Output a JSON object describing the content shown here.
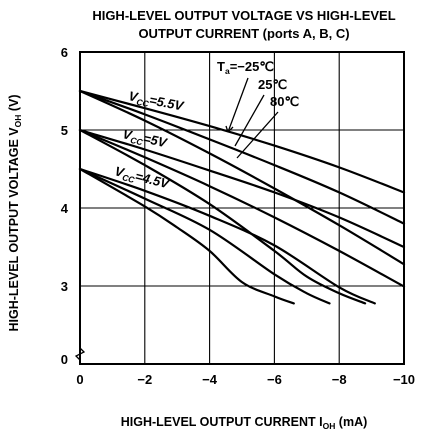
{
  "chart_data": {
    "type": "line",
    "title_line1": "HIGH-LEVEL OUTPUT VOLTAGE VS HIGH-LEVEL",
    "title_line2": "OUTPUT CURRENT (ports A, B, C)",
    "xlabel_main": "HIGH-LEVEL OUTPUT CURRENT I",
    "xlabel_sub": "OH",
    "xlabel_unit": " (mA)",
    "ylabel_main": "HIGH-LEVEL OUTPUT VOLTAGE V",
    "ylabel_sub": "OH",
    "ylabel_unit": " (V)",
    "xlim": [
      0,
      -10
    ],
    "ylim": [
      0,
      6
    ],
    "x_ticks": [
      0,
      -2,
      -4,
      -6,
      -8,
      -10
    ],
    "x_tick_labels": [
      "0",
      "−2",
      "−4",
      "−6",
      "−8",
      "−10"
    ],
    "y_ticks": [
      0,
      3,
      4,
      5,
      6
    ],
    "y_tick_labels": [
      "0",
      "3",
      "4",
      "5",
      "6"
    ],
    "axis_break": true,
    "grid": true,
    "annotations": {
      "ta_prefix": "T",
      "ta_sub": "a",
      "ta_1": "=−25℃",
      "ta_2": "25℃",
      "ta_3": "80℃",
      "vcc_prefix": "V",
      "vcc_sub": "CC",
      "vcc_55": "=5.5V",
      "vcc_5": "=5V",
      "vcc_45": "=4.5V"
    },
    "series": [
      {
        "vcc": 5.5,
        "ta": -25,
        "x": [
          0,
          -2,
          -4,
          -6,
          -8,
          -10
        ],
        "y": [
          5.5,
          5.28,
          5.05,
          4.8,
          4.52,
          4.2
        ]
      },
      {
        "vcc": 5.5,
        "ta": 25,
        "x": [
          0,
          -2,
          -4,
          -6,
          -8,
          -10
        ],
        "y": [
          5.5,
          5.2,
          4.88,
          4.55,
          4.2,
          3.8
        ]
      },
      {
        "vcc": 5.5,
        "ta": 80,
        "x": [
          0,
          -2,
          -4,
          -6,
          -8,
          -10
        ],
        "y": [
          5.5,
          5.12,
          4.7,
          4.25,
          3.78,
          3.28
        ]
      },
      {
        "vcc": 5.0,
        "ta": -25,
        "x": [
          0,
          -2,
          -4,
          -6,
          -8,
          -10
        ],
        "y": [
          5.0,
          4.75,
          4.48,
          4.2,
          3.88,
          3.5
        ]
      },
      {
        "vcc": 5.0,
        "ta": 25,
        "x": [
          0,
          -2,
          -4,
          -6,
          -8,
          -10
        ],
        "y": [
          5.0,
          4.65,
          4.28,
          3.88,
          3.45,
          2.98
        ]
      },
      {
        "vcc": 5.0,
        "ta": 80,
        "x": [
          0,
          -2,
          -4,
          -6,
          -7,
          -8,
          -8.8
        ],
        "y": [
          5.0,
          4.55,
          4.05,
          3.45,
          3.12,
          2.72,
          2.33
        ]
      },
      {
        "vcc": 4.5,
        "ta": -25,
        "x": [
          0,
          -2,
          -4,
          -6,
          -8,
          -9.1
        ],
        "y": [
          4.5,
          4.22,
          3.9,
          3.52,
          2.95,
          2.33
        ]
      },
      {
        "vcc": 4.5,
        "ta": 25,
        "x": [
          0,
          -2,
          -4,
          -6,
          -7,
          -7.7
        ],
        "y": [
          4.5,
          4.12,
          3.72,
          3.15,
          2.72,
          2.33
        ]
      },
      {
        "vcc": 4.5,
        "ta": 80,
        "x": [
          0,
          -2,
          -3,
          -4,
          -5,
          -6,
          -6.6
        ],
        "y": [
          4.5,
          4.02,
          3.75,
          3.45,
          3.05,
          2.6,
          2.33
        ]
      }
    ]
  }
}
